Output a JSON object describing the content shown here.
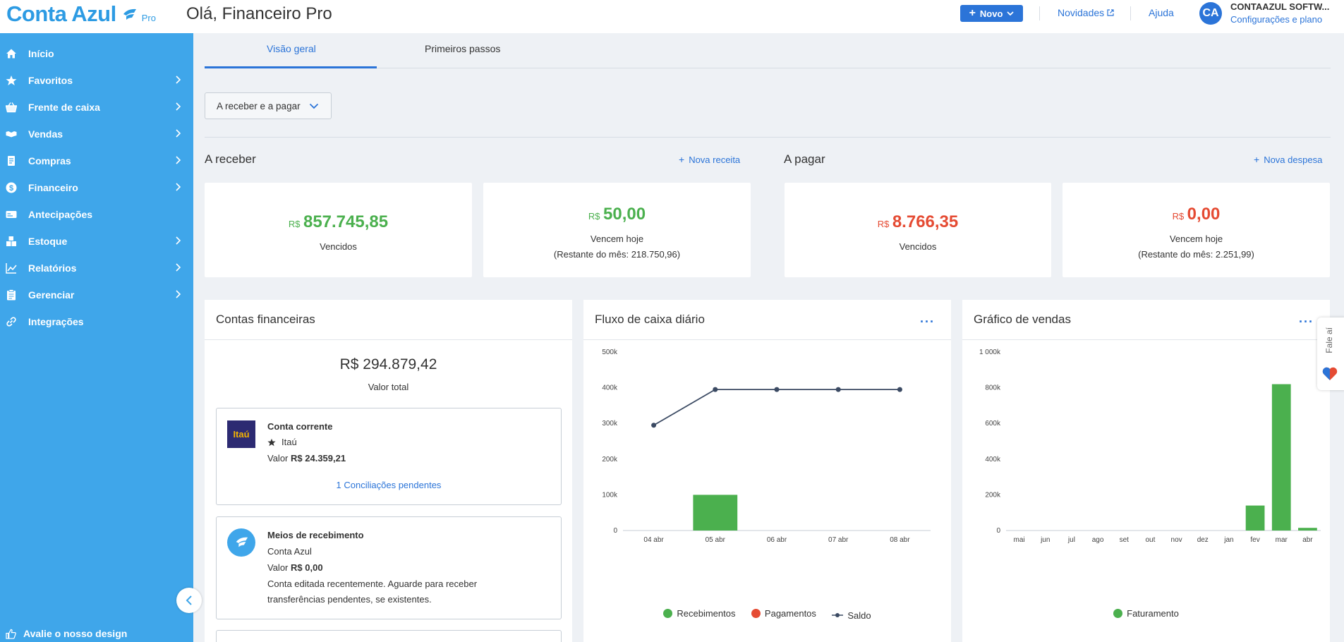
{
  "header": {
    "logo": "Conta Azul",
    "logo_badge": "Pro",
    "greeting": "Olá, Financeiro Pro",
    "new_button": "Novo",
    "news_link": "Novidades",
    "help_link": "Ajuda",
    "avatar_initials": "CA",
    "company_name": "CONTAAZUL SOFTW...",
    "company_sub": "Configurações e plano"
  },
  "sidebar": {
    "items": [
      {
        "label": "Início",
        "icon": "home-icon",
        "chevron": false
      },
      {
        "label": "Favoritos",
        "icon": "star-icon",
        "chevron": true
      },
      {
        "label": "Frente de caixa",
        "icon": "basket-icon",
        "chevron": true
      },
      {
        "label": "Vendas",
        "icon": "handshake-icon",
        "chevron": true
      },
      {
        "label": "Compras",
        "icon": "receipt-icon",
        "chevron": true
      },
      {
        "label": "Financeiro",
        "icon": "dollar-icon",
        "chevron": true
      },
      {
        "label": "Antecipações",
        "icon": "card-icon",
        "chevron": false
      },
      {
        "label": "Estoque",
        "icon": "boxes-icon",
        "chevron": true
      },
      {
        "label": "Relatórios",
        "icon": "chart-icon",
        "chevron": true
      },
      {
        "label": "Gerenciar",
        "icon": "clipboard-icon",
        "chevron": true
      },
      {
        "label": "Integrações",
        "icon": "link-icon",
        "chevron": false
      }
    ],
    "rate_design": "Avalie o nosso design"
  },
  "tabs": [
    {
      "label": "Visão geral",
      "active": true
    },
    {
      "label": "Primeiros passos",
      "active": false
    }
  ],
  "filter": {
    "label": "A receber e a pagar"
  },
  "receivable": {
    "title": "A receber",
    "action": "Nova receita",
    "overdue": {
      "currency": "R$",
      "value": "857.745,85",
      "label": "Vencidos"
    },
    "today": {
      "currency": "R$",
      "value": "50,00",
      "label": "Vencem hoje",
      "rest": "(Restante do mês: 218.750,96)"
    }
  },
  "payable": {
    "title": "A pagar",
    "action": "Nova despesa",
    "overdue": {
      "currency": "R$",
      "value": "8.766,35",
      "label": "Vencidos"
    },
    "today": {
      "currency": "R$",
      "value": "0,00",
      "label": "Vencem hoje",
      "rest": "(Restante do mês: 2.251,99)"
    }
  },
  "accounts": {
    "title": "Contas financeiras",
    "total": "R$ 294.879,42",
    "total_label": "Valor total",
    "items": [
      {
        "name": "Conta corrente",
        "bank": "Itaú",
        "logo_text": "Itaú",
        "value_label": "Valor",
        "value": "R$ 24.359,21",
        "link": "1 Conciliações pendentes"
      },
      {
        "name": "Meios de recebimento",
        "bank": "Conta Azul",
        "value_label": "Valor",
        "value": "R$ 0,00",
        "note_line1": "Conta editada recentemente. Aguarde para receber",
        "note_line2": "transferências pendentes, se existentes."
      }
    ]
  },
  "cashflow": {
    "title": "Fluxo de caixa diário",
    "menu": "···",
    "legend": [
      "Recebimentos",
      "Pagamentos",
      "Saldo"
    ]
  },
  "sales": {
    "title": "Gráfico de vendas",
    "menu": "···",
    "legend": [
      "Faturamento"
    ]
  },
  "side_widget": {
    "label": "Fale aí"
  },
  "colors": {
    "sidebar": "#3fa6ea",
    "primary": "#2b74d8",
    "green": "#4bb04e",
    "red": "#e54b33",
    "line": "#3b4a63"
  },
  "chart_data": [
    {
      "type": "bar+line",
      "title": "Fluxo de caixa diário",
      "categories": [
        "04 abr",
        "05 abr",
        "06 abr",
        "07 abr",
        "08 abr"
      ],
      "yticks": [
        "0",
        "100k",
        "200k",
        "300k",
        "400k",
        "500k"
      ],
      "ylim": [
        0,
        500000
      ],
      "series": [
        {
          "name": "Recebimentos",
          "type": "bar",
          "color": "#4bb04e",
          "values": [
            0,
            100000,
            0,
            0,
            0
          ]
        },
        {
          "name": "Pagamentos",
          "type": "bar",
          "color": "#e54b33",
          "values": [
            0,
            0,
            0,
            0,
            0
          ]
        },
        {
          "name": "Saldo",
          "type": "line",
          "color": "#3b4a63",
          "values": [
            295000,
            395000,
            395000,
            395000,
            395000
          ]
        }
      ],
      "legend": "bottom"
    },
    {
      "type": "bar",
      "title": "Gráfico de vendas",
      "categories": [
        "mai",
        "jun",
        "jul",
        "ago",
        "set",
        "out",
        "nov",
        "dez",
        "jan",
        "fev",
        "mar",
        "abr"
      ],
      "yticks": [
        "0",
        "200k",
        "400k",
        "600k",
        "800k",
        "1 000k"
      ],
      "ylim": [
        0,
        1000000
      ],
      "series": [
        {
          "name": "Faturamento",
          "color": "#4bb04e",
          "values": [
            0,
            0,
            0,
            0,
            0,
            0,
            0,
            0,
            0,
            140000,
            820000,
            15000
          ]
        }
      ],
      "legend": "bottom"
    }
  ]
}
